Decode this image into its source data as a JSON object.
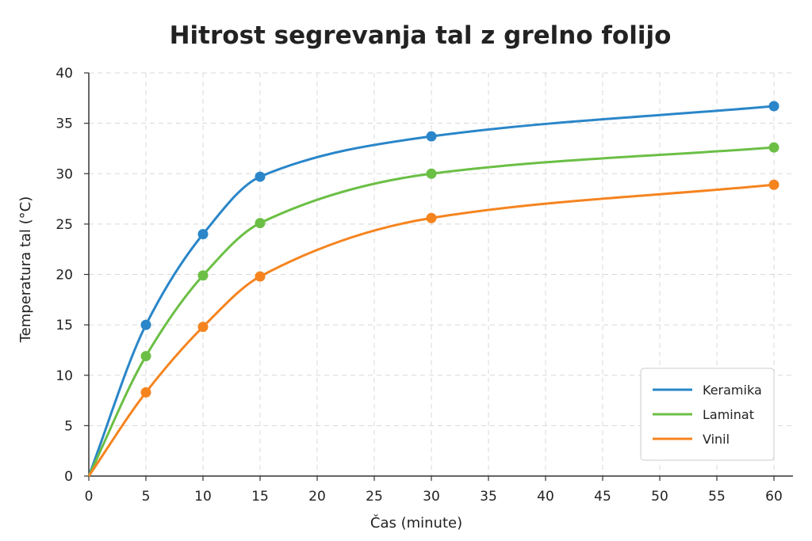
{
  "chart_data": {
    "type": "line",
    "title": "Hitrost segrevanja tal z grelno folijo",
    "xlabel": "Čas (minute)",
    "ylabel": "Temperatura tal (°C)",
    "xlim": [
      0,
      60
    ],
    "ylim": [
      0,
      40
    ],
    "x_ticks": [
      0,
      5,
      10,
      15,
      20,
      25,
      30,
      35,
      40,
      45,
      50,
      55,
      60
    ],
    "y_ticks": [
      0,
      5,
      10,
      15,
      20,
      25,
      30,
      35,
      40
    ],
    "grid": true,
    "legend_position": "bottom-right",
    "series": [
      {
        "name": "Keramika",
        "color": "#2a86c9",
        "x": [
          0,
          5,
          10,
          15,
          30,
          60
        ],
        "y": [
          0,
          15.0,
          24.0,
          29.7,
          33.7,
          36.7
        ]
      },
      {
        "name": "Laminat",
        "color": "#6bbf45",
        "x": [
          0,
          5,
          10,
          15,
          30,
          60
        ],
        "y": [
          0,
          11.9,
          19.9,
          25.1,
          30.0,
          32.6
        ]
      },
      {
        "name": "Vinil",
        "color": "#f5841f",
        "x": [
          0,
          5,
          10,
          15,
          30,
          60
        ],
        "y": [
          0,
          8.3,
          14.8,
          19.8,
          25.6,
          28.9
        ]
      }
    ]
  }
}
